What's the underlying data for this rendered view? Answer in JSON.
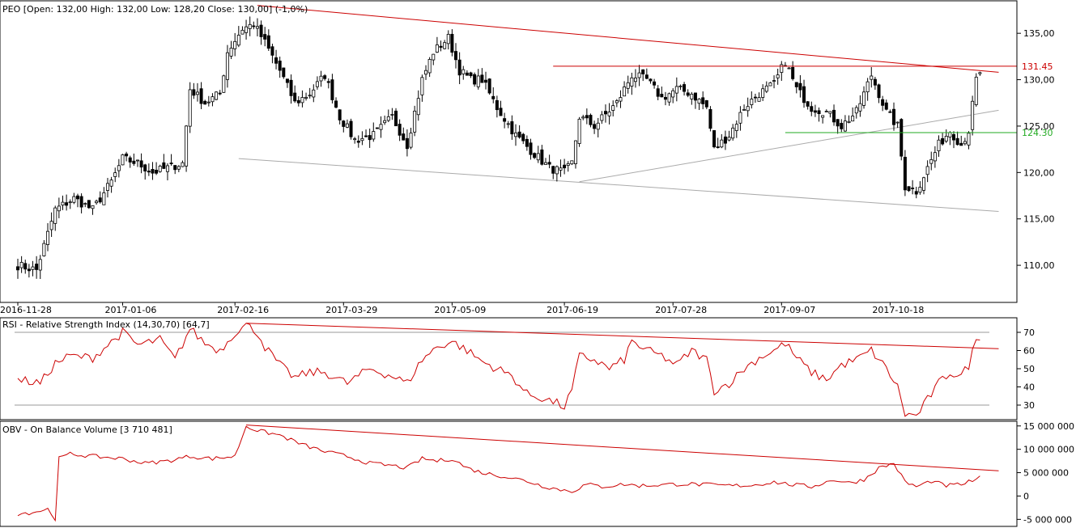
{
  "chart_data": [
    {
      "type": "candlestick",
      "title": "PEO [Open: 132,00  High: 132,00  Low: 128,20  Close: 130,00] (-1,0%)",
      "x_labels": [
        "2016-11-28",
        "2017-01-06",
        "2017-02-16",
        "2017-03-29",
        "2017-05-09",
        "2017-06-19",
        "2017-07-28",
        "2017-09-07",
        "2017-10-18"
      ],
      "x_label_bars": [
        0,
        28,
        58,
        87,
        116,
        146,
        175,
        204,
        233
      ],
      "bar_count": 258,
      "ylim": [
        106.0,
        138.5
      ],
      "yticks": [
        110,
        115,
        120,
        125,
        130,
        135
      ],
      "ytick_labels": [
        "110,00",
        "115,00",
        "120,00",
        "125,00",
        "130,00",
        "135,00"
      ],
      "close_path": [
        [
          0,
          110.0
        ],
        [
          5,
          109.5
        ],
        [
          10,
          116.0
        ],
        [
          15,
          117.2
        ],
        [
          20,
          116.0
        ],
        [
          25,
          119.0
        ],
        [
          28,
          121.5
        ],
        [
          32,
          121.0
        ],
        [
          36,
          120.0
        ],
        [
          40,
          120.5
        ],
        [
          44,
          121.0
        ],
        [
          46,
          129.0
        ],
        [
          50,
          127.5
        ],
        [
          54,
          128.5
        ],
        [
          56,
          133.0
        ],
        [
          60,
          135.5
        ],
        [
          63,
          136.0
        ],
        [
          66,
          134.0
        ],
        [
          70,
          131.0
        ],
        [
          74,
          127.5
        ],
        [
          78,
          128.5
        ],
        [
          82,
          130.5
        ],
        [
          86,
          126.0
        ],
        [
          90,
          123.5
        ],
        [
          95,
          124.0
        ],
        [
          100,
          126.0
        ],
        [
          104,
          123.0
        ],
        [
          108,
          130.0
        ],
        [
          111,
          133.0
        ],
        [
          115,
          134.5
        ],
        [
          118,
          131.0
        ],
        [
          121,
          130.0
        ],
        [
          124,
          130.0
        ],
        [
          128,
          127.0
        ],
        [
          133,
          124.0
        ],
        [
          138,
          122.0
        ],
        [
          142,
          120.5
        ],
        [
          146,
          120.0
        ],
        [
          148,
          121.0
        ],
        [
          150,
          126.0
        ],
        [
          154,
          125.0
        ],
        [
          160,
          127.5
        ],
        [
          164,
          130.5
        ],
        [
          168,
          130.0
        ],
        [
          172,
          128.0
        ],
        [
          176,
          129.0
        ],
        [
          180,
          128.5
        ],
        [
          184,
          127.0
        ],
        [
          186,
          122.5
        ],
        [
          190,
          124.0
        ],
        [
          194,
          127.0
        ],
        [
          198,
          128.5
        ],
        [
          202,
          129.5
        ],
        [
          205,
          132.0
        ],
        [
          208,
          129.0
        ],
        [
          212,
          127.0
        ],
        [
          216,
          126.5
        ],
        [
          220,
          125.0
        ],
        [
          224,
          126.5
        ],
        [
          228,
          130.5
        ],
        [
          232,
          126.5
        ],
        [
          235,
          125.0
        ],
        [
          237,
          118.5
        ],
        [
          240,
          118.0
        ],
        [
          243,
          120.5
        ],
        [
          246,
          123.0
        ],
        [
          249,
          124.5
        ],
        [
          252,
          123.0
        ],
        [
          254,
          124.5
        ],
        [
          256,
          130.0
        ],
        [
          258,
          131.0
        ],
        [
          259,
          130.0
        ]
      ],
      "trendlines": [
        {
          "color": "#cc0000",
          "points": [
            [
              64,
              138.0
            ],
            [
              262,
              130.8
            ]
          ]
        },
        {
          "color": "#aaaaaa",
          "points": [
            [
              59,
              121.5
            ],
            [
              262,
              115.8
            ]
          ]
        },
        {
          "color": "#aaaaaa",
          "points": [
            [
              150,
              119.0
            ],
            [
              262,
              126.7
            ]
          ]
        }
      ],
      "levels": [
        {
          "label": "131.45",
          "value": 131.45,
          "from_bar": 143,
          "color": "#cc0000"
        },
        {
          "label": "124.30",
          "value": 124.3,
          "from_bar": 205,
          "color": "#22aa22"
        }
      ]
    },
    {
      "type": "line",
      "title": "RSI - Relative Strength Index (14,30,70) [64,7]",
      "ylim": [
        22,
        78
      ],
      "yticks": [
        30,
        40,
        50,
        60,
        70
      ],
      "ytick_labels": [
        "30",
        "40",
        "50",
        "60",
        "70"
      ],
      "guide_levels": [
        30,
        70
      ],
      "series_path": [
        [
          0,
          44
        ],
        [
          6,
          42
        ],
        [
          10,
          53
        ],
        [
          14,
          57
        ],
        [
          20,
          56
        ],
        [
          28,
          70
        ],
        [
          32,
          63
        ],
        [
          38,
          66
        ],
        [
          42,
          55
        ],
        [
          46,
          72
        ],
        [
          50,
          64
        ],
        [
          54,
          60
        ],
        [
          58,
          70
        ],
        [
          61,
          74
        ],
        [
          64,
          70
        ],
        [
          66,
          62
        ],
        [
          70,
          52
        ],
        [
          74,
          45
        ],
        [
          78,
          48
        ],
        [
          82,
          48
        ],
        [
          88,
          42
        ],
        [
          94,
          50
        ],
        [
          100,
          46
        ],
        [
          104,
          42
        ],
        [
          108,
          55
        ],
        [
          112,
          62
        ],
        [
          116,
          65
        ],
        [
          120,
          60
        ],
        [
          124,
          54
        ],
        [
          128,
          50
        ],
        [
          132,
          46
        ],
        [
          136,
          36
        ],
        [
          140,
          34
        ],
        [
          144,
          31
        ],
        [
          146,
          29
        ],
        [
          148,
          38
        ],
        [
          150,
          57
        ],
        [
          154,
          55
        ],
        [
          158,
          50
        ],
        [
          162,
          55
        ],
        [
          164,
          65
        ],
        [
          168,
          60
        ],
        [
          172,
          57
        ],
        [
          176,
          52
        ],
        [
          180,
          60
        ],
        [
          184,
          55
        ],
        [
          186,
          38
        ],
        [
          190,
          42
        ],
        [
          194,
          50
        ],
        [
          198,
          56
        ],
        [
          202,
          60
        ],
        [
          205,
          64
        ],
        [
          208,
          56
        ],
        [
          212,
          48
        ],
        [
          216,
          44
        ],
        [
          220,
          52
        ],
        [
          224,
          55
        ],
        [
          228,
          60
        ],
        [
          232,
          50
        ],
        [
          235,
          40
        ],
        [
          237,
          25
        ],
        [
          240,
          24
        ],
        [
          243,
          33
        ],
        [
          246,
          42
        ],
        [
          249,
          48
        ],
        [
          252,
          46
        ],
        [
          254,
          52
        ],
        [
          256,
          66
        ],
        [
          258,
          70
        ],
        [
          259,
          64.7
        ]
      ],
      "trendlines": [
        {
          "color": "#cc0000",
          "points": [
            [
              61,
              75.0
            ],
            [
              262,
              61.0
            ]
          ]
        }
      ]
    },
    {
      "type": "line",
      "title": "OBV - On Balance Volume [3 710 481]",
      "ylim": [
        -6500000,
        16000000
      ],
      "yticks": [
        -5000000,
        0,
        5000000,
        10000000,
        15000000
      ],
      "ytick_labels": [
        "-5 000 000",
        "0",
        "5 000 000",
        "10 000 000",
        "15 000 000"
      ],
      "series_path": [
        [
          0,
          -3800000
        ],
        [
          4,
          -3500000
        ],
        [
          8,
          -2800000
        ],
        [
          10,
          -4800000
        ],
        [
          11,
          8000000
        ],
        [
          14,
          9000000
        ],
        [
          20,
          8500000
        ],
        [
          28,
          8000000
        ],
        [
          34,
          7000000
        ],
        [
          40,
          7500000
        ],
        [
          46,
          8500000
        ],
        [
          52,
          8000000
        ],
        [
          58,
          8500000
        ],
        [
          61,
          15000000
        ],
        [
          64,
          14000000
        ],
        [
          70,
          13000000
        ],
        [
          76,
          11000000
        ],
        [
          82,
          9500000
        ],
        [
          88,
          8500000
        ],
        [
          94,
          7000000
        ],
        [
          100,
          6500000
        ],
        [
          104,
          6000000
        ],
        [
          108,
          8000000
        ],
        [
          112,
          7500000
        ],
        [
          116,
          8000000
        ],
        [
          120,
          6000000
        ],
        [
          124,
          5000000
        ],
        [
          130,
          4200000
        ],
        [
          136,
          3200000
        ],
        [
          140,
          2200000
        ],
        [
          144,
          1500000
        ],
        [
          148,
          1000000
        ],
        [
          152,
          2500000
        ],
        [
          156,
          2000000
        ],
        [
          162,
          2500000
        ],
        [
          166,
          2200000
        ],
        [
          172,
          2400000
        ],
        [
          178,
          2600000
        ],
        [
          184,
          2400000
        ],
        [
          190,
          2200000
        ],
        [
          196,
          2300000
        ],
        [
          202,
          3000000
        ],
        [
          206,
          2500000
        ],
        [
          212,
          2000000
        ],
        [
          218,
          3500000
        ],
        [
          222,
          2800000
        ],
        [
          226,
          3500000
        ],
        [
          230,
          6000000
        ],
        [
          234,
          7000000
        ],
        [
          237,
          3000000
        ],
        [
          240,
          2000000
        ],
        [
          244,
          3200000
        ],
        [
          248,
          2200000
        ],
        [
          252,
          2500000
        ],
        [
          256,
          3500000
        ],
        [
          258,
          4200000
        ],
        [
          259,
          3710481
        ]
      ],
      "trendlines": [
        {
          "color": "#cc0000",
          "points": [
            [
              61,
              15200000
            ],
            [
              262,
              5400000
            ]
          ]
        }
      ]
    }
  ]
}
